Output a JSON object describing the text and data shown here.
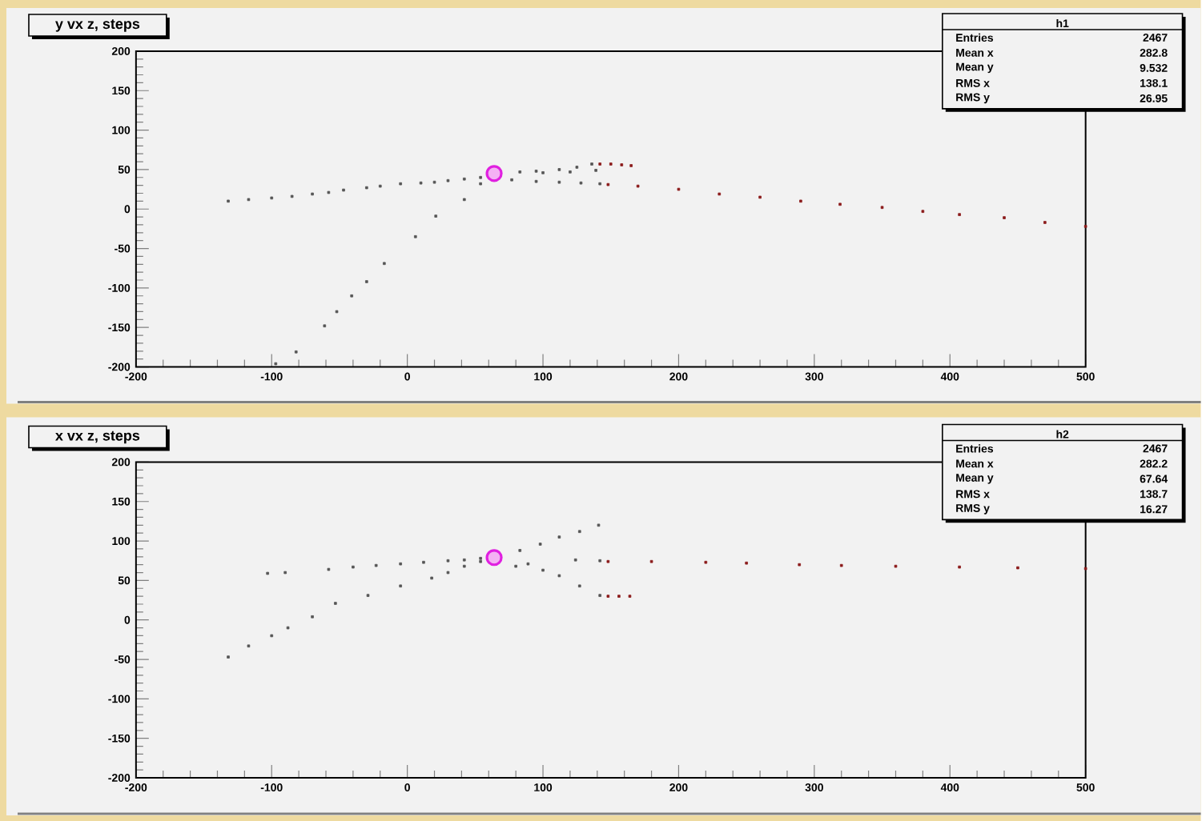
{
  "chart_data": [
    {
      "type": "scatter",
      "title": "y vx z, steps",
      "xlim": [
        -200,
        500
      ],
      "ylim": [
        -200,
        200
      ],
      "xticks": [
        -200,
        -100,
        0,
        100,
        200,
        300,
        400,
        500
      ],
      "yticks": [
        -200,
        -150,
        -100,
        -50,
        0,
        50,
        100,
        150,
        200
      ],
      "annotations": [
        "h1",
        "Entries",
        "2467",
        "Mean x",
        "282.8",
        "Mean y",
        "9.532",
        "RMS x",
        "138.1",
        "RMS y",
        "26.95"
      ],
      "series": [
        {
          "color": "#555555",
          "marker": "square",
          "x": [
            -132,
            -117,
            -100,
            -85,
            -70,
            -58,
            -47,
            -30,
            -20,
            -5,
            10,
            20,
            30,
            42,
            54,
            -97,
            -82,
            -61,
            -52,
            -41,
            -30,
            -17,
            6,
            21,
            42,
            54,
            83,
            95,
            112,
            125,
            136,
            77,
            95,
            112,
            128,
            142,
            100,
            120,
            139
          ],
          "values": [
            10,
            12,
            14,
            16,
            19,
            21,
            24,
            27,
            29,
            32,
            33,
            34,
            36,
            38,
            40,
            -196,
            -181,
            -148,
            -130,
            -110,
            -92,
            -69,
            -35,
            -9,
            12,
            32,
            47,
            48,
            50,
            53,
            57,
            37,
            35,
            34,
            33,
            32,
            46,
            47,
            49
          ]
        },
        {
          "color": "#8b1a1a",
          "marker": "square",
          "x": [
            142,
            150,
            158,
            165,
            148,
            170,
            200,
            230,
            260,
            290,
            319,
            350,
            380,
            407,
            440,
            470,
            500
          ],
          "values": [
            57,
            57,
            56,
            55,
            31,
            29,
            25,
            19,
            15,
            10,
            6,
            2,
            -3,
            -7,
            -11,
            -17,
            -22
          ]
        },
        {
          "color": "#e020e0",
          "marker": "circle",
          "x": [
            64
          ],
          "values": [
            45
          ]
        }
      ]
    },
    {
      "type": "scatter",
      "title": "x vx z, steps",
      "xlim": [
        -200,
        500
      ],
      "ylim": [
        -200,
        200
      ],
      "xticks": [
        -200,
        -100,
        0,
        100,
        200,
        300,
        400,
        500
      ],
      "yticks": [
        -200,
        -150,
        -100,
        -50,
        0,
        50,
        100,
        150,
        200
      ],
      "annotations": [
        "h2",
        "Entries",
        "2467",
        "Mean x",
        "282.2",
        "Mean y",
        "67.64",
        "RMS x",
        "138.7",
        "RMS y",
        "16.27"
      ],
      "series": [
        {
          "color": "#555555",
          "marker": "square",
          "x": [
            -103,
            -90,
            -58,
            -40,
            -23,
            -5,
            12,
            30,
            42,
            54,
            -132,
            -117,
            -100,
            -88,
            -70,
            -53,
            -29,
            -5,
            18,
            30,
            42,
            54,
            83,
            98,
            112,
            127,
            141,
            80,
            89,
            100,
            112,
            127,
            142,
            124,
            142
          ],
          "values": [
            59,
            60,
            64,
            67,
            69,
            71,
            73,
            75,
            76,
            78,
            -47,
            -33,
            -20,
            -10,
            4,
            21,
            31,
            43,
            53,
            60,
            68,
            74,
            88,
            96,
            105,
            112,
            120,
            68,
            71,
            63,
            56,
            43,
            31,
            76,
            75
          ]
        },
        {
          "color": "#8b1a1a",
          "marker": "square",
          "x": [
            148,
            156,
            164,
            148,
            180,
            220,
            250,
            289,
            320,
            360,
            407,
            450,
            500
          ],
          "values": [
            30,
            30,
            30,
            74,
            74,
            73,
            72,
            70,
            69,
            68,
            67,
            66,
            65
          ]
        },
        {
          "color": "#e020e0",
          "marker": "circle",
          "x": [
            64
          ],
          "values": [
            79
          ]
        }
      ]
    }
  ]
}
